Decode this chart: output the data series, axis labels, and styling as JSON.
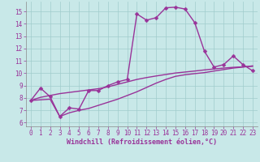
{
  "xlabel": "Windchill (Refroidissement éolien,°C)",
  "bg_color": "#c8e8e8",
  "line_color": "#993399",
  "xlim_min": -0.5,
  "xlim_max": 23.5,
  "ylim_min": 5.7,
  "ylim_max": 15.8,
  "yticks": [
    6,
    7,
    8,
    9,
    10,
    11,
    12,
    13,
    14,
    15
  ],
  "xticks": [
    0,
    1,
    2,
    3,
    4,
    5,
    6,
    7,
    8,
    9,
    10,
    11,
    12,
    13,
    14,
    15,
    16,
    17,
    18,
    19,
    20,
    21,
    22,
    23
  ],
  "curve1_x": [
    0,
    1,
    2,
    3,
    4,
    5,
    6,
    7,
    8,
    9,
    10,
    11,
    12,
    13,
    14,
    15,
    16,
    17,
    18,
    19,
    20,
    21,
    22,
    23
  ],
  "curve1_y": [
    7.8,
    8.8,
    8.1,
    6.5,
    7.2,
    7.1,
    8.6,
    8.6,
    9.0,
    9.3,
    9.5,
    14.8,
    14.3,
    14.5,
    15.3,
    15.35,
    15.2,
    14.1,
    11.8,
    10.5,
    10.7,
    11.4,
    10.7,
    10.2
  ],
  "curve2_x": [
    0,
    1,
    2,
    3,
    4,
    5,
    6,
    7,
    8,
    9,
    10,
    11,
    12,
    13,
    14,
    15,
    16,
    17,
    18,
    19,
    20,
    21,
    22,
    23
  ],
  "curve2_y": [
    7.8,
    8.05,
    8.2,
    8.35,
    8.45,
    8.55,
    8.65,
    8.75,
    8.9,
    9.1,
    9.3,
    9.5,
    9.65,
    9.78,
    9.9,
    10.02,
    10.1,
    10.18,
    10.27,
    10.35,
    10.42,
    10.48,
    10.52,
    10.56
  ],
  "curve3_x": [
    0,
    1,
    2,
    3,
    4,
    5,
    6,
    7,
    8,
    9,
    10,
    11,
    12,
    13,
    14,
    15,
    16,
    17,
    18,
    19,
    20,
    21,
    22,
    23
  ],
  "curve3_y": [
    7.8,
    7.85,
    7.9,
    6.5,
    6.8,
    7.0,
    7.15,
    7.4,
    7.65,
    7.9,
    8.2,
    8.5,
    8.85,
    9.2,
    9.5,
    9.75,
    9.88,
    9.97,
    10.05,
    10.18,
    10.3,
    10.42,
    10.5,
    10.6
  ],
  "grid_color": "#a0cccc",
  "markersize": 2.5,
  "linewidth": 1.0,
  "tick_fontsize": 5.5,
  "label_fontsize": 6.0
}
